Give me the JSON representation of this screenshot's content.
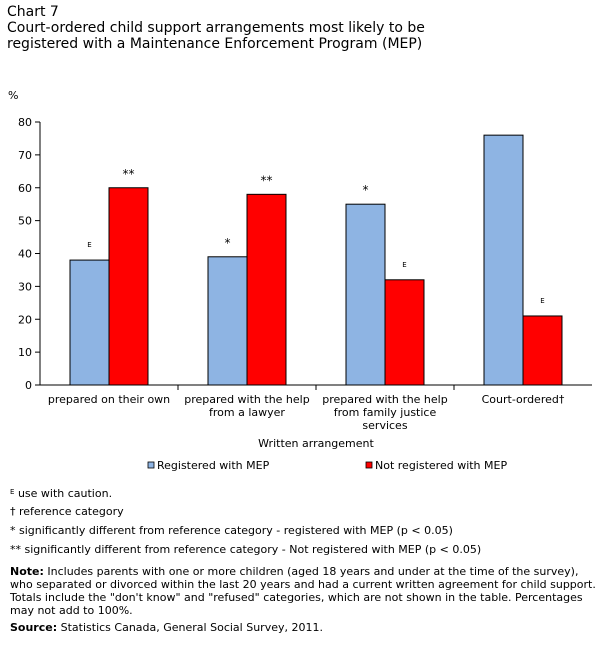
{
  "header": {
    "chart_label": "Chart 7",
    "title": "Court-ordered child support arrangements most likely to be registered with a Maintenance Enforcement Program (MEP)"
  },
  "chart_data": {
    "type": "bar",
    "ylabel": "%",
    "xlabel": "Written arrangement",
    "ylim": [
      0,
      80
    ],
    "yticks": [
      0,
      10,
      20,
      30,
      40,
      50,
      60,
      70,
      80
    ],
    "categories": [
      [
        "prepared on their own"
      ],
      [
        "prepared with the help",
        "from a lawyer"
      ],
      [
        "prepared with the help",
        "from family justice",
        "services"
      ],
      [
        "Court-ordered†"
      ]
    ],
    "series": [
      {
        "name": "Registered with MEP",
        "color": "#8eb4e3",
        "values": [
          38,
          39,
          55,
          76
        ],
        "markers": [
          "E",
          "*",
          "*",
          ""
        ]
      },
      {
        "name": "Not registered with MEP",
        "color": "#ff0000",
        "values": [
          60,
          58,
          32,
          21
        ],
        "markers": [
          "**",
          "**",
          "E",
          "E"
        ]
      }
    ],
    "legend_position": "bottom",
    "grid": false
  },
  "footnotes": {
    "e": "use with caution.",
    "e_symbol": "E",
    "dagger": "† reference category",
    "star": "* significantly different from reference category - registered with MEP (p < 0.05)",
    "doublestar": "**  significantly different from reference category - Not registered with MEP (p < 0.05)"
  },
  "note": {
    "label": "Note:",
    "text": "Includes parents with one or more children (aged 18 years and under at the time of the survey), who separated or divorced within the last 20 years and had a current written agreement for child support. Totals include the \"don't know\" and \"refused\" categories, which are not shown in the table. Percentages may not add to 100%."
  },
  "source": {
    "label": "Source:",
    "text": "Statistics Canada, General Social Survey, 2011."
  }
}
